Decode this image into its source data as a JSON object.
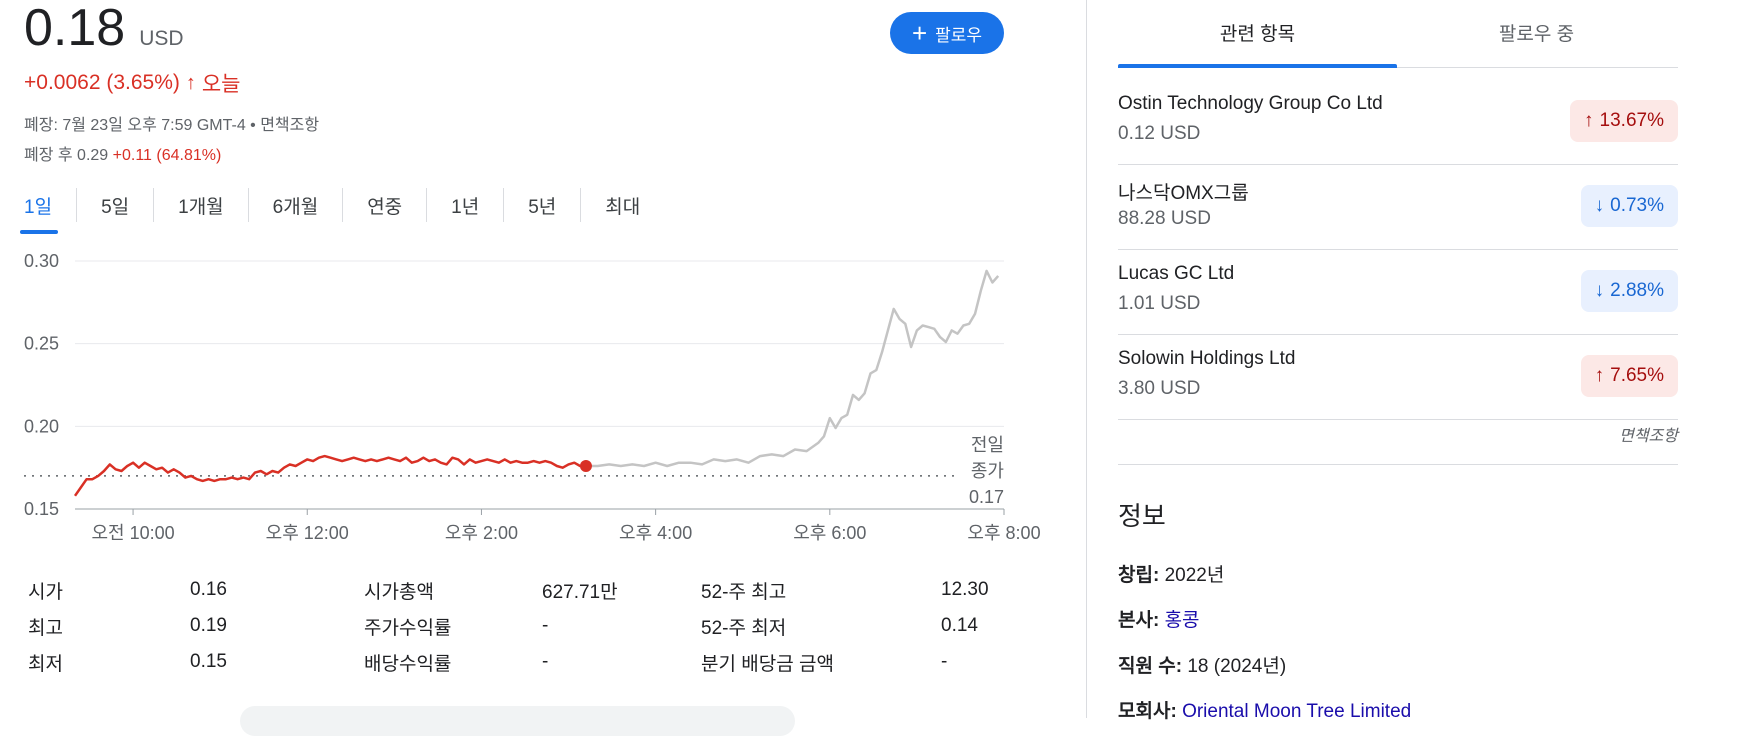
{
  "quote": {
    "price": "0.18",
    "currency": "USD",
    "change": "+0.0062 (3.65%)",
    "change_arrow": "↑",
    "period": "오늘",
    "closed_info": "폐장: 7월 23일 오후 7:59 GMT-4 • 면책조항",
    "after_label": "폐장 후 0.29",
    "after_change": "+0.11 (64.81%)"
  },
  "follow_button": {
    "icon": "plus-icon",
    "label": "팔로우"
  },
  "range_tabs": [
    "1일",
    "5일",
    "1개월",
    "6개월",
    "연중",
    "1년",
    "5년",
    "최대"
  ],
  "active_tab": 0,
  "chart_data": {
    "type": "line",
    "x_ticks": [
      "오전 10:00",
      "오후 12:00",
      "오후 2:00",
      "오후 4:00",
      "오후 6:00",
      "오후 8:00"
    ],
    "y_ticks": [
      "0.30",
      "0.25",
      "0.20",
      "0.15"
    ],
    "ylim": [
      0.15,
      0.3
    ],
    "previous_close": 0.17,
    "previous_close_label": [
      "전일",
      "종가",
      "0.17"
    ],
    "grid": true,
    "colors": {
      "regular": "#d93025",
      "after_hours": "#c4c4c4",
      "grid": "#e8eaed"
    },
    "series": [
      {
        "session": "regular",
        "points": [
          [
            0,
            0.158
          ],
          [
            2,
            0.163
          ],
          [
            4,
            0.168
          ],
          [
            6,
            0.168
          ],
          [
            8,
            0.17
          ],
          [
            10,
            0.173
          ],
          [
            12,
            0.177
          ],
          [
            14,
            0.174
          ],
          [
            16,
            0.173
          ],
          [
            18,
            0.176
          ],
          [
            20,
            0.178
          ],
          [
            22,
            0.175
          ],
          [
            24,
            0.178
          ],
          [
            26,
            0.176
          ],
          [
            28,
            0.174
          ],
          [
            30,
            0.175
          ],
          [
            32,
            0.172
          ],
          [
            34,
            0.174
          ],
          [
            36,
            0.172
          ],
          [
            38,
            0.169
          ],
          [
            40,
            0.17
          ],
          [
            42,
            0.168
          ],
          [
            44,
            0.167
          ],
          [
            46,
            0.168
          ],
          [
            48,
            0.167
          ],
          [
            50,
            0.168
          ],
          [
            52,
            0.168
          ],
          [
            54,
            0.169
          ],
          [
            56,
            0.168
          ],
          [
            58,
            0.169
          ],
          [
            60,
            0.168
          ],
          [
            62,
            0.172
          ],
          [
            64,
            0.173
          ],
          [
            66,
            0.171
          ],
          [
            68,
            0.173
          ],
          [
            70,
            0.172
          ],
          [
            72,
            0.175
          ],
          [
            74,
            0.177
          ],
          [
            76,
            0.176
          ],
          [
            78,
            0.178
          ],
          [
            80,
            0.18
          ],
          [
            82,
            0.179
          ],
          [
            84,
            0.181
          ],
          [
            86,
            0.182
          ],
          [
            88,
            0.181
          ],
          [
            90,
            0.18
          ],
          [
            92,
            0.179
          ],
          [
            94,
            0.18
          ],
          [
            96,
            0.181
          ],
          [
            98,
            0.18
          ],
          [
            100,
            0.179
          ],
          [
            102,
            0.18
          ],
          [
            104,
            0.179
          ],
          [
            106,
            0.18
          ],
          [
            108,
            0.181
          ],
          [
            110,
            0.18
          ],
          [
            112,
            0.179
          ],
          [
            114,
            0.181
          ],
          [
            116,
            0.178
          ],
          [
            118,
            0.179
          ],
          [
            120,
            0.181
          ],
          [
            122,
            0.179
          ],
          [
            124,
            0.18
          ],
          [
            126,
            0.178
          ],
          [
            128,
            0.177
          ],
          [
            130,
            0.181
          ],
          [
            132,
            0.18
          ],
          [
            134,
            0.177
          ],
          [
            136,
            0.18
          ],
          [
            138,
            0.178
          ],
          [
            140,
            0.179
          ],
          [
            142,
            0.18
          ],
          [
            144,
            0.179
          ],
          [
            146,
            0.178
          ],
          [
            148,
            0.18
          ],
          [
            150,
            0.178
          ],
          [
            152,
            0.179
          ],
          [
            154,
            0.178
          ],
          [
            156,
            0.178
          ],
          [
            158,
            0.179
          ],
          [
            160,
            0.178
          ],
          [
            162,
            0.179
          ],
          [
            164,
            0.178
          ],
          [
            166,
            0.176
          ],
          [
            168,
            0.175
          ],
          [
            170,
            0.177
          ],
          [
            172,
            0.178
          ],
          [
            174,
            0.176
          ],
          [
            176,
            0.176
          ]
        ]
      },
      {
        "session": "after_hours",
        "points": [
          [
            176,
            0.176
          ],
          [
            180,
            0.176
          ],
          [
            184,
            0.177
          ],
          [
            188,
            0.176
          ],
          [
            192,
            0.177
          ],
          [
            196,
            0.176
          ],
          [
            200,
            0.178
          ],
          [
            204,
            0.176
          ],
          [
            208,
            0.178
          ],
          [
            212,
            0.178
          ],
          [
            216,
            0.177
          ],
          [
            220,
            0.18
          ],
          [
            224,
            0.179
          ],
          [
            228,
            0.18
          ],
          [
            232,
            0.178
          ],
          [
            236,
            0.182
          ],
          [
            240,
            0.183
          ],
          [
            244,
            0.182
          ],
          [
            248,
            0.186
          ],
          [
            252,
            0.185
          ],
          [
            256,
            0.19
          ],
          [
            258,
            0.194
          ],
          [
            260,
            0.205
          ],
          [
            262,
            0.199
          ],
          [
            264,
            0.205
          ],
          [
            266,
            0.207
          ],
          [
            268,
            0.219
          ],
          [
            270,
            0.216
          ],
          [
            272,
            0.22
          ],
          [
            274,
            0.232
          ],
          [
            276,
            0.234
          ],
          [
            278,
            0.245
          ],
          [
            280,
            0.258
          ],
          [
            282,
            0.271
          ],
          [
            284,
            0.265
          ],
          [
            286,
            0.262
          ],
          [
            288,
            0.248
          ],
          [
            290,
            0.258
          ],
          [
            292,
            0.261
          ],
          [
            294,
            0.26
          ],
          [
            296,
            0.259
          ],
          [
            298,
            0.254
          ],
          [
            300,
            0.251
          ],
          [
            302,
            0.258
          ],
          [
            304,
            0.256
          ],
          [
            306,
            0.261
          ],
          [
            308,
            0.262
          ],
          [
            310,
            0.268
          ],
          [
            312,
            0.282
          ],
          [
            314,
            0.294
          ],
          [
            316,
            0.287
          ],
          [
            318,
            0.291
          ]
        ]
      }
    ],
    "x_range": [
      0,
      320
    ],
    "x_tick_positions": [
      20,
      80,
      140,
      200,
      260,
      320
    ]
  },
  "stats": [
    [
      "시가",
      "0.16",
      "시가총액",
      "627.71만",
      "52-주 최고",
      "12.30"
    ],
    [
      "최고",
      "0.19",
      "주가수익률",
      "-",
      "52-주 최저",
      "0.14"
    ],
    [
      "최저",
      "0.15",
      "배당수익률",
      "-",
      "분기 배당금 금액",
      "-"
    ]
  ],
  "right_tabs": [
    "관련 항목",
    "팔로우 중"
  ],
  "related": [
    {
      "name": "Ostin Technology Group Co Ltd",
      "price": "0.12 USD",
      "direction": "up",
      "change": "13.67%"
    },
    {
      "name": "나스닥OMX그룹",
      "price": "88.28 USD",
      "direction": "down",
      "change": "0.73%"
    },
    {
      "name": "Lucas GC Ltd",
      "price": "1.01 USD",
      "direction": "down",
      "change": "2.88%"
    },
    {
      "name": "Solowin Holdings Ltd",
      "price": "3.80 USD",
      "direction": "up",
      "change": "7.65%"
    }
  ],
  "related_disclaimer": "면책조항",
  "info": {
    "title": "정보",
    "founded_label": "창립:",
    "founded": "2022년",
    "hq_label": "본사:",
    "hq": "홍콩",
    "employees_label": "직원 수:",
    "employees": "18 (2024년)",
    "parent_label": "모회사:",
    "parent": "Oriental Moon Tree Limited"
  }
}
